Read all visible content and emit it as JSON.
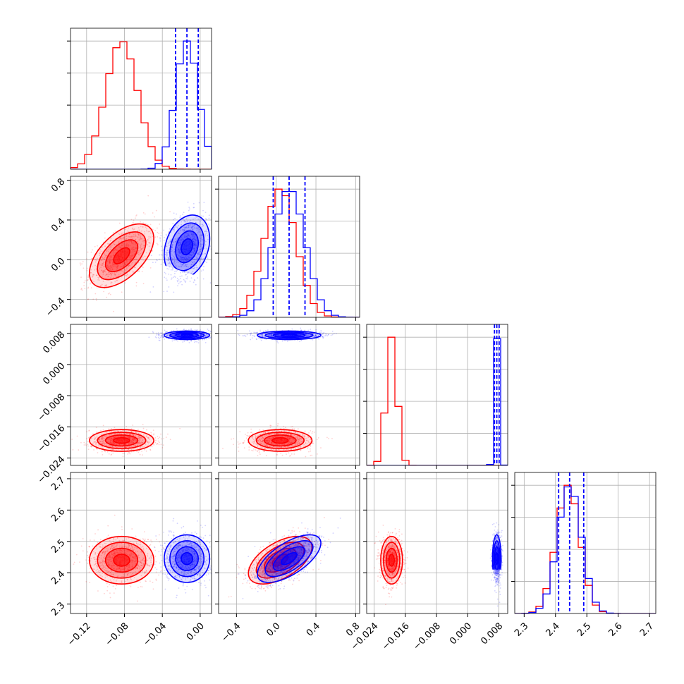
{
  "chart_data": {
    "type": "corner",
    "parameters": [
      {
        "ticks": [
          -0.12,
          -0.08,
          -0.04,
          0.0
        ],
        "tick_labels": [
          "−0.12",
          "−0.08",
          "−0.04",
          "0.00"
        ],
        "range": [
          -0.137,
          0.012
        ]
      },
      {
        "ticks": [
          -0.4,
          0.0,
          0.4,
          0.8
        ],
        "tick_labels": [
          "−0.4",
          "0.0",
          "0.4",
          "0.8"
        ],
        "range": [
          -0.58,
          0.84
        ]
      },
      {
        "ticks": [
          -0.024,
          -0.016,
          -0.008,
          0.0,
          0.008
        ],
        "tick_labels": [
          "−0.024",
          "−0.016",
          "−0.008",
          "0.000",
          "0.008"
        ],
        "range": [
          -0.0259,
          0.0103
        ]
      },
      {
        "ticks": [
          2.3,
          2.4,
          2.5,
          2.6,
          2.7
        ],
        "tick_labels": [
          "2.3",
          "2.4",
          "2.5",
          "2.6",
          "2.7"
        ],
        "range": [
          2.27,
          2.72
        ]
      }
    ],
    "grid": true,
    "series": [
      {
        "color": "#ff0000",
        "means": [
          -0.083,
          0.04,
          -0.0195,
          2.44
        ],
        "stds": [
          0.017,
          0.16,
          0.0014,
          0.038
        ],
        "correlations": {
          "0-1": 0.55,
          "0-2": 0.0,
          "0-3": 0.0,
          "1-2": 0.0,
          "1-3": 0.55,
          "2-3": 0.0
        },
        "quantile_lines": false
      },
      {
        "color": "#0000ff",
        "means": [
          -0.014,
          0.13,
          0.0075,
          2.445
        ],
        "stds": [
          0.012,
          0.16,
          0.00055,
          0.038
        ],
        "correlations": {
          "0-1": 0.25,
          "0-2": 0.0,
          "0-3": 0.0,
          "1-2": 0.0,
          "1-3": 0.65,
          "2-3": 0.0
        },
        "quantile_lines": true,
        "quantiles": [
          [
            -0.026,
            -0.014,
            -0.002
          ],
          [
            -0.03,
            0.13,
            0.29
          ],
          [
            0.0069,
            0.0075,
            0.0081
          ],
          [
            2.41,
            2.445,
            2.49
          ]
        ]
      }
    ]
  }
}
